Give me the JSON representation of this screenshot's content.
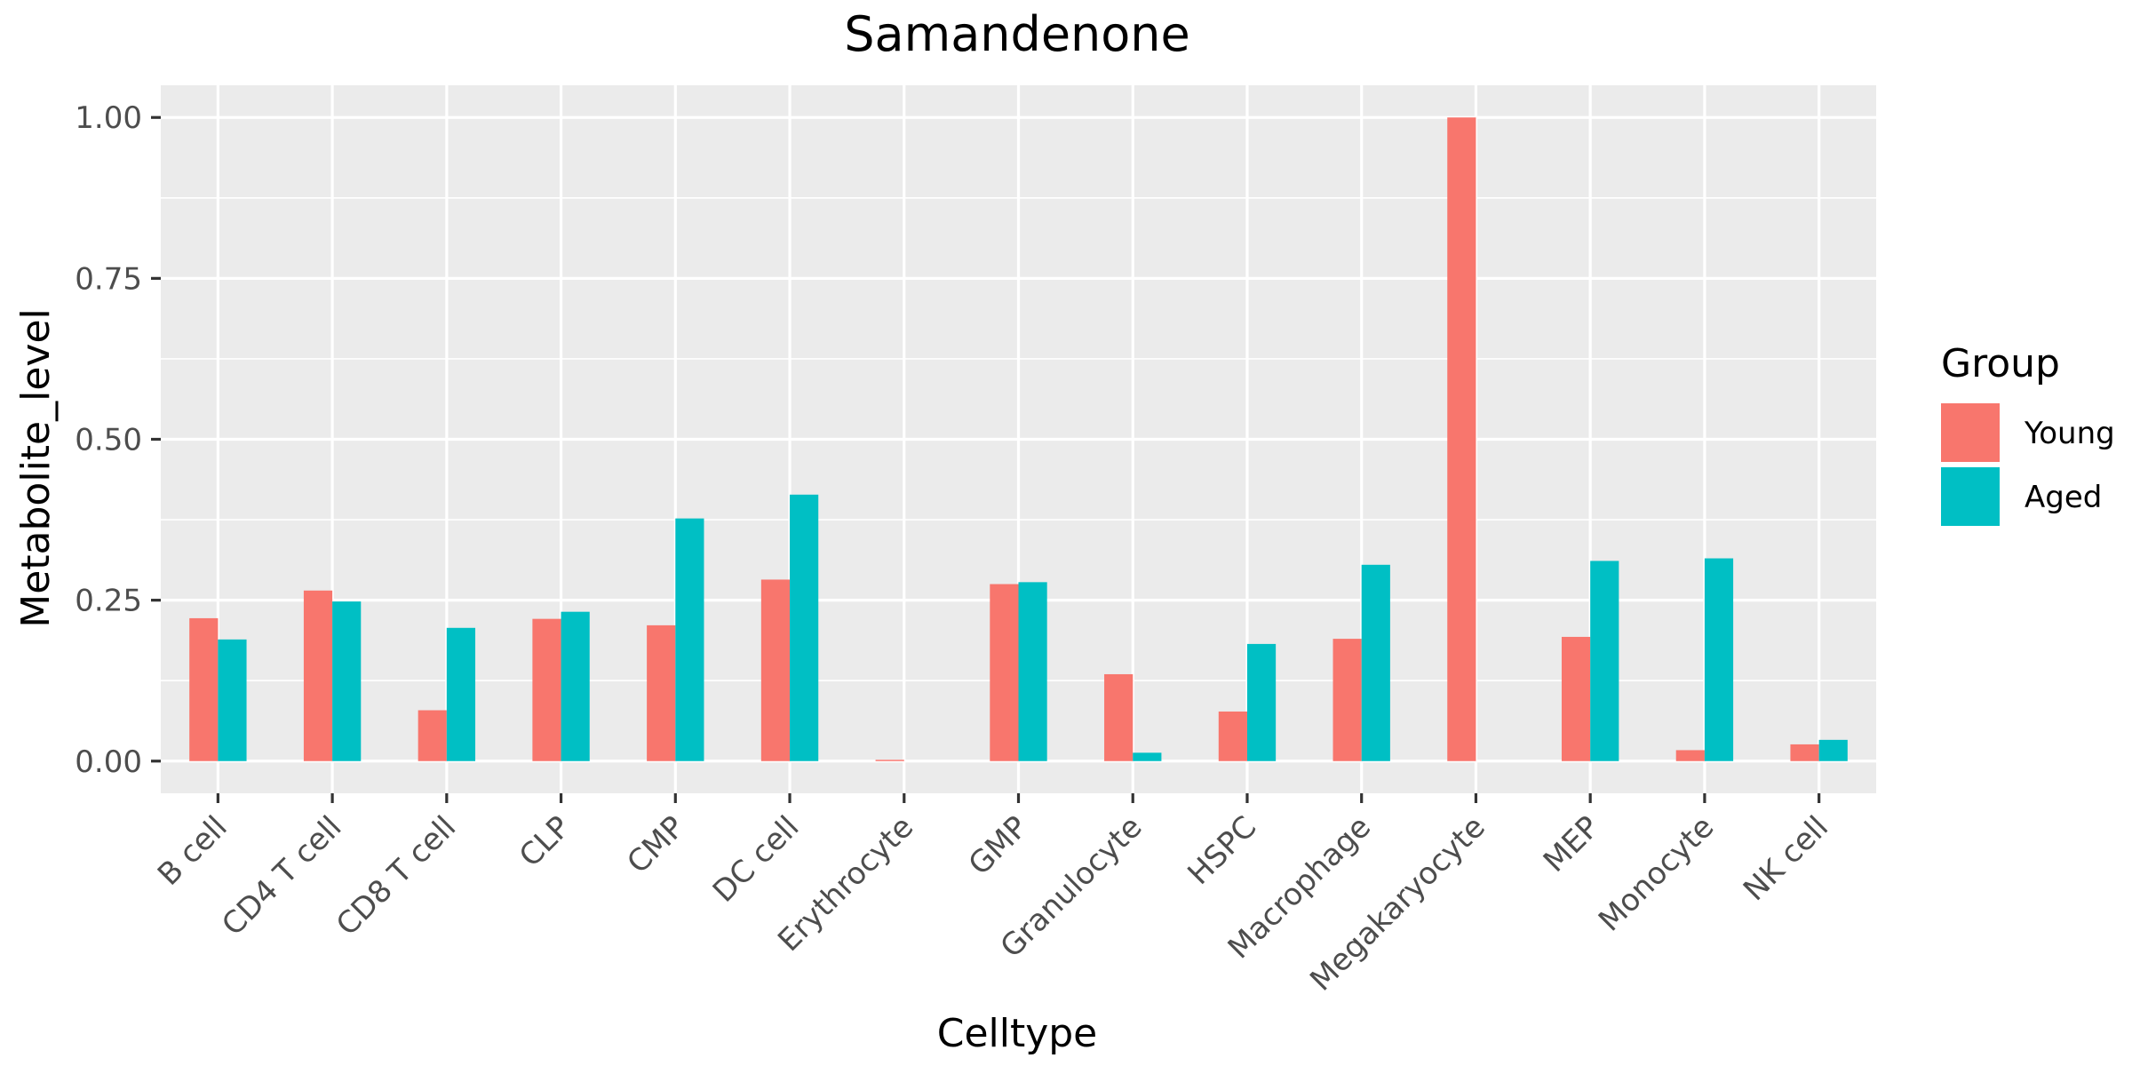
{
  "chart_data": {
    "type": "bar",
    "title": "Samandenone",
    "xlabel": "Celltype",
    "ylabel": "Metabolite_level",
    "ylim": [
      -0.05,
      1.05
    ],
    "yticks": [
      0.0,
      0.25,
      0.5,
      0.75,
      1.0
    ],
    "ytick_labels": [
      "0.00",
      "0.25",
      "0.50",
      "0.75",
      "1.00"
    ],
    "grid": true,
    "legend": {
      "title": "Group",
      "placement": "right"
    },
    "categories": [
      "B cell",
      "CD4 T cell",
      "CD8 T cell",
      "CLP",
      "CMP",
      "DC cell",
      "Erythrocyte",
      "GMP",
      "Granulocyte",
      "HSPC",
      "Macrophage",
      "Megakaryocyte",
      "MEP",
      "Monocyte",
      "NK cell"
    ],
    "series": [
      {
        "name": "Young",
        "color": "#F8766D",
        "values": [
          0.222,
          0.265,
          0.079,
          0.221,
          0.211,
          0.282,
          0.002,
          0.275,
          0.135,
          0.077,
          0.19,
          1.0,
          0.193,
          0.017,
          0.026
        ]
      },
      {
        "name": "Aged",
        "color": "#00BFC4",
        "values": [
          0.189,
          0.248,
          0.207,
          0.232,
          0.377,
          0.414,
          null,
          0.278,
          0.013,
          0.182,
          0.305,
          null,
          0.311,
          0.315,
          0.033
        ]
      }
    ]
  }
}
